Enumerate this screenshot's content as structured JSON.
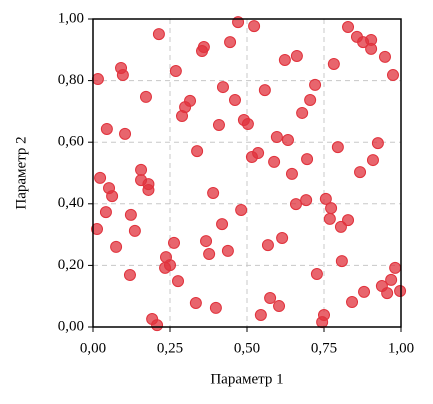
{
  "chart_data": {
    "type": "scatter",
    "xlabel": "Параметр 1",
    "ylabel": "Параметр 2",
    "color": "#e0323c",
    "grid": true,
    "xlim": [
      0,
      1
    ],
    "ylim": [
      0,
      1
    ],
    "xticks": [
      {
        "value": 0,
        "label": "0,00"
      },
      {
        "value": 0.25,
        "label": "0,25"
      },
      {
        "value": 0.5,
        "label": "0,50"
      },
      {
        "value": 0.75,
        "label": "0,75"
      },
      {
        "value": 1,
        "label": "1,00"
      }
    ],
    "yticks": [
      {
        "value": 0,
        "label": "0,00"
      },
      {
        "value": 0.2,
        "label": "0,20"
      },
      {
        "value": 0.4,
        "label": "0,40"
      },
      {
        "value": 0.6,
        "label": "0,60"
      },
      {
        "value": 0.8,
        "label": "0,80"
      },
      {
        "value": 1,
        "label": "1,00"
      }
    ],
    "x": [
      0.016,
      0.091,
      0.097,
      0.045,
      0.104,
      0.214,
      0.269,
      0.172,
      0.354,
      0.36,
      0.289,
      0.299,
      0.315,
      0.422,
      0.445,
      0.471,
      0.523,
      0.461,
      0.409,
      0.49,
      0.503,
      0.516,
      0.558,
      0.536,
      0.623,
      0.662,
      0.679,
      0.721,
      0.705,
      0.782,
      0.597,
      0.633,
      0.588,
      0.646,
      0.695,
      0.795,
      0.828,
      0.857,
      0.877,
      0.903,
      0.903,
      0.948,
      0.974,
      0.925,
      0.909,
      0.867,
      0.156,
      0.156,
      0.18,
      0.18,
      0.023,
      0.052,
      0.062,
      0.042,
      0.123,
      0.136,
      0.013,
      0.075,
      0.12,
      0.263,
      0.237,
      0.25,
      0.234,
      0.276,
      0.338,
      0.39,
      0.419,
      0.367,
      0.377,
      0.438,
      0.481,
      0.334,
      0.399,
      0.545,
      0.568,
      0.614,
      0.575,
      0.604,
      0.659,
      0.692,
      0.756,
      0.769,
      0.773,
      0.805,
      0.828,
      0.808,
      0.727,
      0.75,
      0.744,
      0.841,
      0.88,
      0.938,
      0.955,
      0.968,
      0.981,
      0.997,
      0.192,
      0.208
    ],
    "y": [
      0.805,
      0.841,
      0.818,
      0.643,
      0.627,
      0.951,
      0.831,
      0.747,
      0.896,
      0.909,
      0.685,
      0.714,
      0.734,
      0.779,
      0.925,
      0.99,
      0.977,
      0.737,
      0.656,
      0.672,
      0.659,
      0.552,
      0.769,
      0.565,
      0.867,
      0.88,
      0.695,
      0.786,
      0.737,
      0.854,
      0.617,
      0.607,
      0.536,
      0.497,
      0.545,
      0.584,
      0.974,
      0.942,
      0.925,
      0.932,
      0.903,
      0.877,
      0.818,
      0.597,
      0.542,
      0.503,
      0.51,
      0.477,
      0.464,
      0.445,
      0.484,
      0.451,
      0.425,
      0.373,
      0.364,
      0.312,
      0.318,
      0.26,
      0.169,
      0.273,
      0.227,
      0.201,
      0.192,
      0.149,
      0.571,
      0.435,
      0.334,
      0.279,
      0.237,
      0.247,
      0.38,
      0.078,
      0.062,
      0.039,
      0.266,
      0.289,
      0.094,
      0.068,
      0.399,
      0.412,
      0.416,
      0.351,
      0.386,
      0.325,
      0.347,
      0.214,
      0.172,
      0.039,
      0.016,
      0.081,
      0.114,
      0.133,
      0.11,
      0.153,
      0.192,
      0.117,
      0.026,
      0.006
    ]
  }
}
